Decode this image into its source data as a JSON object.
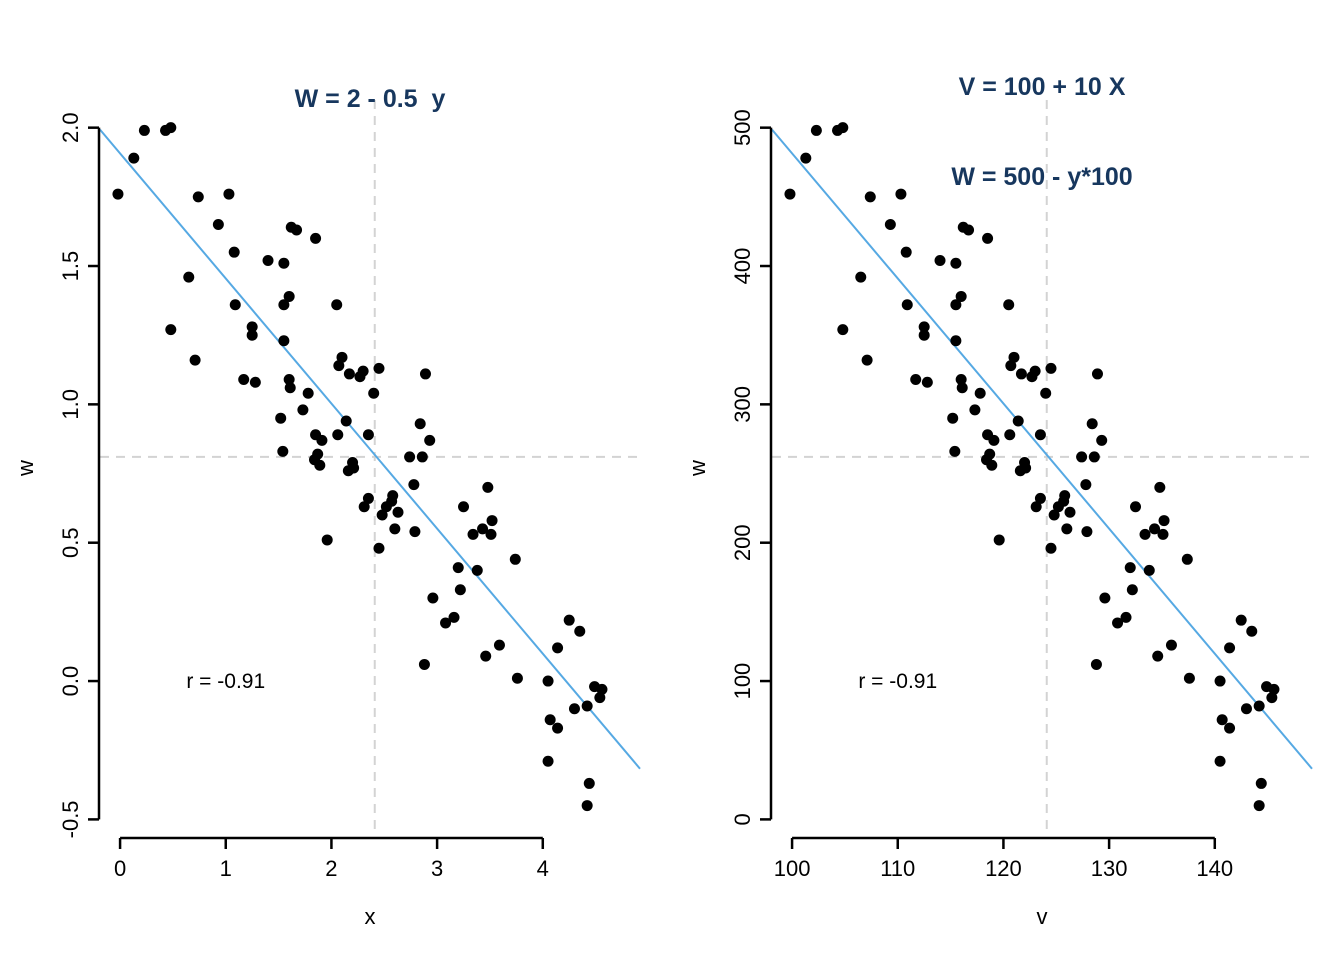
{
  "figure": {
    "background": "#ffffff"
  },
  "colors": {
    "title": "#17375e",
    "point": "#000000",
    "regression_line": "#56a9e3",
    "mean_dashed": "#d3d3d3",
    "axis": "#000000",
    "text": "#000000"
  },
  "points": {
    "n": 98,
    "comment_source": "shared scatter sample; right panel uses v = 100 + 10x, W = 100 + 200w",
    "x_w_pairs": [
      [
        0.23,
        1.99
      ],
      [
        0.43,
        1.99
      ],
      [
        0.48,
        2.0
      ],
      [
        0.13,
        1.89
      ],
      [
        -0.02,
        1.76
      ],
      [
        0.74,
        1.75
      ],
      [
        1.03,
        1.76
      ],
      [
        0.93,
        1.65
      ],
      [
        1.62,
        1.64
      ],
      [
        1.67,
        1.63
      ],
      [
        1.85,
        1.6
      ],
      [
        1.08,
        1.55
      ],
      [
        1.4,
        1.52
      ],
      [
        1.55,
        1.51
      ],
      [
        0.65,
        1.46
      ],
      [
        1.6,
        1.39
      ],
      [
        1.55,
        1.36
      ],
      [
        2.05,
        1.36
      ],
      [
        1.09,
        1.36
      ],
      [
        0.48,
        1.27
      ],
      [
        1.25,
        1.28
      ],
      [
        1.25,
        1.25
      ],
      [
        1.55,
        1.23
      ],
      [
        0.71,
        1.16
      ],
      [
        1.17,
        1.09
      ],
      [
        1.28,
        1.08
      ],
      [
        1.6,
        1.09
      ],
      [
        1.61,
        1.06
      ],
      [
        1.78,
        1.04
      ],
      [
        2.1,
        1.17
      ],
      [
        2.07,
        1.14
      ],
      [
        2.17,
        1.11
      ],
      [
        2.27,
        1.1
      ],
      [
        2.3,
        1.12
      ],
      [
        2.4,
        1.04
      ],
      [
        1.73,
        0.98
      ],
      [
        1.52,
        0.95
      ],
      [
        2.14,
        0.94
      ],
      [
        1.85,
        0.89
      ],
      [
        1.91,
        0.87
      ],
      [
        2.06,
        0.89
      ],
      [
        2.35,
        0.89
      ],
      [
        1.54,
        0.83
      ],
      [
        1.87,
        0.82
      ],
      [
        1.84,
        0.8
      ],
      [
        1.89,
        0.78
      ],
      [
        2.2,
        0.79
      ],
      [
        2.16,
        0.76
      ],
      [
        2.21,
        0.77
      ],
      [
        2.35,
        0.66
      ],
      [
        2.31,
        0.63
      ],
      [
        1.96,
        0.51
      ],
      [
        2.45,
        1.13
      ],
      [
        2.89,
        1.11
      ],
      [
        2.84,
        0.93
      ],
      [
        2.93,
        0.87
      ],
      [
        2.74,
        0.81
      ],
      [
        2.86,
        0.81
      ],
      [
        2.78,
        0.71
      ],
      [
        2.58,
        0.67
      ],
      [
        2.57,
        0.65
      ],
      [
        2.52,
        0.63
      ],
      [
        2.48,
        0.6
      ],
      [
        2.63,
        0.61
      ],
      [
        2.6,
        0.55
      ],
      [
        2.79,
        0.54
      ],
      [
        2.45,
        0.48
      ],
      [
        3.48,
        0.7
      ],
      [
        3.25,
        0.63
      ],
      [
        3.52,
        0.58
      ],
      [
        3.43,
        0.55
      ],
      [
        3.51,
        0.53
      ],
      [
        3.34,
        0.53
      ],
      [
        3.74,
        0.44
      ],
      [
        3.2,
        0.41
      ],
      [
        3.38,
        0.4
      ],
      [
        3.22,
        0.33
      ],
      [
        2.96,
        0.3
      ],
      [
        3.08,
        0.21
      ],
      [
        3.16,
        0.23
      ],
      [
        2.88,
        0.06
      ],
      [
        3.46,
        0.09
      ],
      [
        3.59,
        0.13
      ],
      [
        3.76,
        0.01
      ],
      [
        4.05,
        0.0
      ],
      [
        4.25,
        0.22
      ],
      [
        4.35,
        0.18
      ],
      [
        4.14,
        0.12
      ],
      [
        4.49,
        -0.02
      ],
      [
        4.56,
        -0.03
      ],
      [
        4.54,
        -0.06
      ],
      [
        4.3,
        -0.1
      ],
      [
        4.42,
        -0.09
      ],
      [
        4.07,
        -0.14
      ],
      [
        4.14,
        -0.17
      ],
      [
        4.05,
        -0.29
      ],
      [
        4.44,
        -0.37
      ],
      [
        4.42,
        -0.45
      ]
    ]
  },
  "chart_data": [
    {
      "type": "scatter",
      "title_lines": [
        "W = 2 - 0.5  y"
      ],
      "xlabel": "x",
      "ylabel": "w",
      "xlim": [
        -0.19,
        4.92
      ],
      "ylim": [
        -0.56,
        2.1
      ],
      "xticks": [
        0,
        1,
        2,
        3,
        4
      ],
      "xtick_labels": [
        "0",
        "1",
        "2",
        "3",
        "4"
      ],
      "yticks": [
        -0.5,
        0,
        0.5,
        1,
        1.5,
        2
      ],
      "ytick_labels": [
        "-0.5",
        "0.0",
        "0.5",
        "1.0",
        "1.5",
        "2.0"
      ],
      "points_transform": {
        "x_mul": 1,
        "x_add": 0,
        "y_mul": 1,
        "y_add": 0
      },
      "regression_line": {
        "slope": -0.452,
        "intercept": 1.907
      },
      "mean_lines": {
        "x": 2.41,
        "y": 0.81
      },
      "annotation": {
        "text": "r = -0.91",
        "x": 1.0,
        "y": 0.0
      },
      "grid": false,
      "legend": "none"
    },
    {
      "type": "scatter",
      "title_lines": [
        "V = 100 + 10 X",
        "W = 500 - y*100"
      ],
      "xlabel": "v",
      "ylabel": "w",
      "xlim": [
        98.1,
        149.2
      ],
      "ylim": [
        -12,
        520
      ],
      "xticks": [
        100,
        110,
        120,
        130,
        140
      ],
      "xtick_labels": [
        "100",
        "110",
        "120",
        "130",
        "140"
      ],
      "yticks": [
        0,
        100,
        200,
        300,
        400,
        500
      ],
      "ytick_labels": [
        "0",
        "100",
        "200",
        "300",
        "400",
        "500"
      ],
      "points_transform": {
        "x_mul": 10,
        "x_add": 100,
        "y_mul": 200,
        "y_add": 100
      },
      "regression_line": {
        "slope": -9.04,
        "intercept": 1385.4
      },
      "mean_lines": {
        "x": 124.1,
        "y": 262
      },
      "annotation": {
        "text": "r = -0.91",
        "x": 110,
        "y": 100
      },
      "grid": false,
      "legend": "none"
    }
  ]
}
